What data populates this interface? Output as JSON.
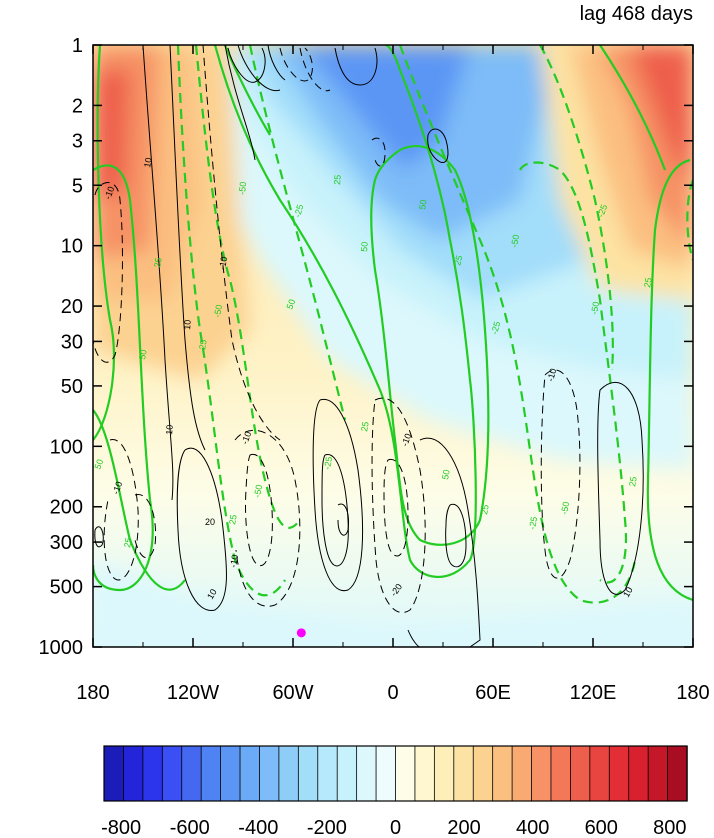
{
  "chart_data": {
    "type": "heatmap",
    "title": "lag 468 days",
    "xlabel": "",
    "ylabel": "",
    "x_ticks": [
      "180",
      "120W",
      "60W",
      "0",
      "60E",
      "120E",
      "180"
    ],
    "x_tick_values": [
      -180,
      -120,
      -60,
      0,
      60,
      120,
      180
    ],
    "y_ticks": [
      "1",
      "2",
      "3",
      "5",
      "10",
      "20",
      "30",
      "50",
      "100",
      "200",
      "300",
      "500",
      "1000"
    ],
    "y_tick_values": [
      1,
      2,
      3,
      5,
      10,
      20,
      30,
      50,
      100,
      200,
      300,
      500,
      1000
    ],
    "y_scale": "log",
    "y_reversed": true,
    "xlim": [
      -180,
      180
    ],
    "ylim": [
      1000,
      1
    ],
    "colorbar": {
      "labels": [
        "-800",
        "-600",
        "-400",
        "-200",
        "0",
        "200",
        "400",
        "600",
        "800"
      ],
      "range": [
        -850,
        850
      ],
      "interval": 50,
      "colors": [
        "#1c1cb8",
        "#2424d8",
        "#2c34ec",
        "#3a4ff4",
        "#4468f0",
        "#4f82f2",
        "#5c96f5",
        "#6aaaf7",
        "#7dbcf8",
        "#8fcdf9",
        "#a2ddfa",
        "#b5e9fb",
        "#c8f2fb",
        "#dcf8fc",
        "#eefcfd",
        "#fdfde8",
        "#fef7d0",
        "#feefb8",
        "#fde3a3",
        "#fcd291",
        "#fbbf80",
        "#f9aa72",
        "#f69265",
        "#f27858",
        "#ee5e4c",
        "#e94540",
        "#e32e36",
        "#d8202f",
        "#c41728",
        "#a80d22"
      ]
    },
    "filled_field": "shaded anomaly (color scale -800 to 800)",
    "contour_sets": [
      {
        "color": "#000000",
        "levels": [
          -20,
          -10,
          10,
          20
        ],
        "negative_style": "dashed"
      },
      {
        "color": "#22cc22",
        "levels": [
          -50,
          -25,
          25,
          50
        ],
        "negative_style": "dashed"
      }
    ],
    "marker": {
      "x": -55,
      "y": 850,
      "color": "#ff00ff"
    }
  }
}
